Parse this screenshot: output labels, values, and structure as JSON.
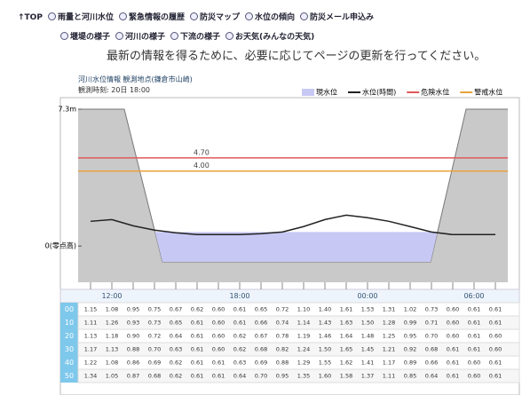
{
  "nav": {
    "top": "↑TOP",
    "links": [
      "雨量と河川水位",
      "緊急情報の履歴",
      "防災マップ",
      "水位の傾向",
      "防災メール申込み",
      "堰堤の様子",
      "河川の様子",
      "下流の様子",
      "お天気(みんなの天気)"
    ]
  },
  "notice": "最新の情報を得るために、必要に応じてページの更新を行ってください。",
  "station": "河川水位情報 観測地点(鎌倉市山崎)",
  "obs_time": "観測時刻: 20日 18:00",
  "chart_data": {
    "type": "line",
    "categories": [
      null,
      "12:00",
      null,
      null,
      null,
      null,
      null,
      "18:00",
      null,
      null,
      null,
      null,
      null,
      "00:00",
      null,
      null,
      null,
      null,
      "06:00",
      null
    ],
    "series": [
      {
        "name": "水位(時間)",
        "color": "#222222",
        "values": [
          1.32,
          1.41,
          1.08,
          0.85,
          0.71,
          0.61,
          0.61,
          0.61,
          0.66,
          0.75,
          1.04,
          1.41,
          1.65,
          1.51,
          1.32,
          1.04,
          0.75,
          0.61,
          0.61,
          0.61
        ]
      }
    ],
    "area": {
      "name": "現水位",
      "color": "#c8c8f5",
      "value": 0.75
    },
    "hlines": [
      {
        "name": "危険水位",
        "color": "#e05a5a",
        "value": 4.7,
        "label": "4.70"
      },
      {
        "name": "警戒水位",
        "color": "#e8a23a",
        "value": 4.0,
        "label": "4.00"
      }
    ],
    "ylim": [
      -2.5,
      7.3
    ],
    "yticks": [
      {
        "value": 7.3,
        "label": "7.3m"
      },
      {
        "value": 0,
        "label": "0(零点高)"
      }
    ]
  },
  "table": {
    "row_labels": [
      "00",
      "10",
      "20",
      "30",
      "40",
      "50"
    ],
    "rows": [
      [
        "1.15",
        "1.08",
        "0.95",
        "0.75",
        "0.67",
        "0.62",
        "0.60",
        "0.61",
        "0.65",
        "0.72",
        "1.10",
        "1.40",
        "1.61",
        "1.53",
        "1.31",
        "1.02",
        "0.73",
        "0.60",
        "0.61",
        "0.61"
      ],
      [
        "1.11",
        "1.26",
        "0.93",
        "0.73",
        "0.65",
        "0.61",
        "0.60",
        "0.61",
        "0.66",
        "0.74",
        "1.14",
        "1.43",
        "1.63",
        "1.50",
        "1.28",
        "0.99",
        "0.71",
        "0.60",
        "0.61",
        "0.61"
      ],
      [
        "1.13",
        "1.18",
        "0.90",
        "0.72",
        "0.64",
        "0.61",
        "0.60",
        "0.62",
        "0.67",
        "0.78",
        "1.19",
        "1.46",
        "1.64",
        "1.48",
        "1.25",
        "0.95",
        "0.70",
        "0.60",
        "0.61",
        "0.60"
      ],
      [
        "1.17",
        "1.13",
        "0.88",
        "0.70",
        "0.63",
        "0.61",
        "0.60",
        "0.62",
        "0.68",
        "0.82",
        "1.24",
        "1.50",
        "1.65",
        "1.45",
        "1.21",
        "0.92",
        "0.68",
        "0.61",
        "0.61",
        "0.60"
      ],
      [
        "1.22",
        "1.08",
        "0.86",
        "0.69",
        "0.62",
        "0.61",
        "0.61",
        "0.63",
        "0.69",
        "0.88",
        "1.29",
        "1.55",
        "1.62",
        "1.41",
        "1.17",
        "0.89",
        "0.66",
        "0.61",
        "0.60",
        "0.61"
      ],
      [
        "1.34",
        "1.05",
        "0.87",
        "0.68",
        "0.62",
        "0.61",
        "0.61",
        "0.64",
        "0.70",
        "0.95",
        "1.35",
        "1.60",
        "1.58",
        "1.37",
        "1.11",
        "0.85",
        "0.64",
        "0.61",
        "0.60",
        "0.61"
      ]
    ]
  }
}
